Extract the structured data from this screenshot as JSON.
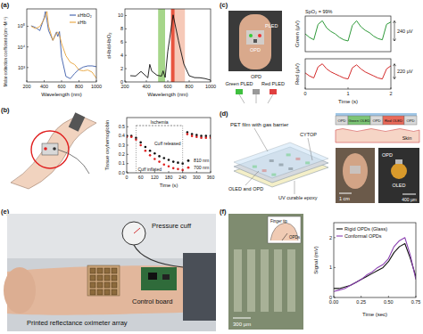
{
  "panel_labels": [
    "(a)",
    "(b)",
    "(c)",
    "(d)",
    "(e)",
    "(f)"
  ],
  "chart_data": [
    {
      "type": "line",
      "y_label": "Molar extinction coefficient ε(cm⁻¹M⁻¹)",
      "x_label": "Wavelength (nm)",
      "log": "y",
      "x": [
        250,
        300,
        350,
        400,
        414,
        432,
        450,
        500,
        542,
        556,
        576,
        600,
        650,
        700,
        750,
        800,
        850,
        900,
        950,
        1000
      ],
      "series": [
        {
          "name": "εHbO₂",
          "color": "#3b5ba9",
          "values": [
            106000,
            88000,
            62000,
            266000,
            524000,
            200000,
            62800,
            20900,
            53200,
            32000,
            55500,
            3200,
            370,
            290,
            518,
            816,
            1058,
            1198,
            1204,
            1100
          ]
        },
        {
          "name": "εHb",
          "color": "#e8a33a",
          "values": [
            100000,
            78000,
            98000,
            223000,
            330000,
            528000,
            103000,
            20800,
            46600,
            53500,
            37000,
            14700,
            3750,
            1800,
            1400,
            760,
            690,
            760,
            600,
            300
          ]
        }
      ],
      "xlim": [
        200,
        1000
      ],
      "xticks": [
        200,
        400,
        600,
        800,
        1000
      ],
      "ylim": [
        200,
        700000
      ],
      "yticks": [
        {
          "value": 1000,
          "label": "10³"
        },
        {
          "value": 10000,
          "label": "10⁴"
        },
        {
          "value": 100000,
          "label": "10⁵"
        }
      ],
      "legend": "top-right"
    },
    {
      "type": "line",
      "y_label": "εHb/εHbO₂",
      "x_label": "Wavelength (nm)",
      "x": [
        250,
        300,
        350,
        400,
        414,
        432,
        450,
        500,
        542,
        556,
        576,
        600,
        650,
        700,
        750,
        800,
        850,
        900,
        950,
        1000
      ],
      "series": [
        {
          "color": "#111111",
          "values": [
            0.94,
            0.89,
            1.58,
            0.84,
            0.63,
            2.64,
            1.64,
            1.0,
            0.88,
            1.67,
            0.67,
            4.6,
            10.1,
            6.2,
            2.7,
            0.93,
            0.65,
            0.63,
            0.5,
            0.27
          ]
        }
      ],
      "shaded_ranges": [
        {
          "from": 510,
          "to": 575,
          "color": "#a6d68a"
        },
        {
          "from": 630,
          "to": 665,
          "color": "#e8553f"
        },
        {
          "from": 665,
          "to": 760,
          "color": "#f6c9b8"
        }
      ],
      "xlim": [
        200,
        1000
      ],
      "xticks": [
        200,
        400,
        600,
        800,
        1000
      ],
      "ylim": [
        0,
        11
      ],
      "yticks": [
        0,
        2,
        4,
        6,
        8,
        10
      ]
    },
    {
      "type": "scatter",
      "y_label": "Tissue oxyhemoglobin",
      "x_label": "Time (s)",
      "x": [
        0,
        20,
        40,
        60,
        80,
        100,
        120,
        140,
        160,
        180,
        200,
        220,
        240,
        260,
        280,
        300,
        320,
        340,
        360
      ],
      "series": [
        {
          "name": "810 nm",
          "color": "#111111",
          "values": [
            0.4,
            0.4,
            0.38,
            0.33,
            0.28,
            0.24,
            0.21,
            0.18,
            0.16,
            0.14,
            0.12,
            0.11,
            0.1,
            0.44,
            0.42,
            0.41,
            0.4,
            0.4,
            0.4
          ]
        },
        {
          "name": "700 nm",
          "color": "#e02020",
          "values": [
            0.39,
            0.39,
            0.36,
            0.3,
            0.24,
            0.19,
            0.15,
            0.12,
            0.09,
            0.07,
            0.05,
            0.04,
            0.03,
            0.42,
            0.4,
            0.39,
            0.38,
            0.38,
            0.38
          ]
        }
      ],
      "xlim": [
        0,
        360
      ],
      "xticks": [
        0,
        60,
        120,
        180,
        240,
        300,
        360
      ],
      "ylim": [
        0,
        0.6
      ],
      "yticks": [
        {
          "value": 0,
          "label": "0.0"
        },
        0.1,
        0.2,
        0.3,
        0.4,
        0.5
      ],
      "legend": "bottom-right",
      "annotations": [
        {
          "text": "Ischemia"
        },
        {
          "text": "Cuff inflated",
          "x": 40
        },
        {
          "text": "Cuff released",
          "x": 240
        }
      ]
    },
    {
      "type": "line",
      "y_label": "Green (µV)",
      "x": [
        0,
        0.1,
        0.2,
        0.3,
        0.4,
        0.5,
        0.6,
        0.7,
        0.8,
        0.9,
        1.0,
        1.1,
        1.2,
        1.3,
        1.4,
        1.5,
        1.6,
        1.7,
        1.8,
        1.9,
        2.0
      ],
      "series": [
        {
          "color": "#2f9a3a",
          "values": [
            150,
            120,
            100,
            230,
            260,
            200,
            170,
            150,
            120,
            100,
            90,
            220,
            260,
            210,
            180,
            160,
            130,
            110,
            100,
            230,
            250
          ]
        }
      ],
      "xlim": [
        0,
        2
      ],
      "ylim": [
        0,
        300
      ],
      "tick_labels": false,
      "annotations": [
        {
          "text": "SpO₂ = 99%"
        },
        {
          "text": "240 µV"
        }
      ]
    },
    {
      "type": "line",
      "y_label": "Red (µV)",
      "x_label": "Time (s)",
      "x": [
        0,
        0.1,
        0.2,
        0.3,
        0.4,
        0.5,
        0.6,
        0.7,
        0.8,
        0.9,
        1.0,
        1.1,
        1.2,
        1.3,
        1.4,
        1.5,
        1.6,
        1.7,
        1.8,
        1.9,
        2.0
      ],
      "series": [
        {
          "color": "#d42a2a",
          "values": [
            160,
            130,
            110,
            220,
            250,
            200,
            170,
            150,
            130,
            110,
            100,
            210,
            240,
            200,
            170,
            150,
            130,
            110,
            100,
            200,
            230
          ]
        }
      ],
      "xlim": [
        0,
        2
      ],
      "xticks": [
        0,
        1,
        2
      ],
      "ylim": [
        0,
        300
      ],
      "tick_labels": "x",
      "annotations": [
        {
          "text": "220 µV"
        }
      ]
    },
    {
      "type": "line",
      "y_label": "Signal (mV)",
      "x_label": "Time (sec)",
      "x": [
        0,
        0.05,
        0.1,
        0.15,
        0.2,
        0.25,
        0.3,
        0.35,
        0.4,
        0.45,
        0.5,
        0.55,
        0.6,
        0.65,
        0.7,
        0.75
      ],
      "series": [
        {
          "name": "Rigid OPDs (Glass)",
          "color": "#111111",
          "values": [
            0.3,
            0.3,
            0.35,
            0.4,
            0.5,
            0.6,
            0.7,
            0.8,
            0.9,
            1.0,
            1.2,
            1.5,
            1.7,
            1.8,
            1.3,
            0.7
          ]
        },
        {
          "name": "Conformal OPDs",
          "color": "#8a3fb0",
          "values": [
            0.2,
            0.25,
            0.3,
            0.4,
            0.5,
            0.6,
            0.75,
            0.85,
            1.0,
            1.1,
            1.3,
            1.7,
            1.9,
            2.0,
            1.4,
            0.6
          ]
        }
      ],
      "xlim": [
        0,
        0.75
      ],
      "xticks": [
        {
          "value": 0,
          "label": "0.00"
        },
        0.25,
        {
          "value": 0.5,
          "label": "0.50"
        },
        0.75
      ],
      "ylim": [
        0,
        2.5
      ],
      "yticks": [
        0,
        1,
        2
      ],
      "legend": "top-left"
    }
  ],
  "illustrations": {
    "c": [
      "PLED",
      "OPD",
      "Green PLED",
      "OPD",
      "Red PLED"
    ],
    "d": [
      "PET film with gas barrier",
      "CYTOP",
      "UV curable epoxy",
      "OLED and OPD",
      "OPD",
      "Green OLED",
      "OPD",
      "Red OLED",
      "OPD",
      "Skin",
      "1 cm",
      "OPD",
      "OLED",
      "400 µm"
    ],
    "e": [
      "Pressure cuff",
      "Printed reflectance oximeter array",
      "Control board"
    ],
    "f": [
      "300 µm",
      "Finger tip",
      "OPDs"
    ]
  }
}
